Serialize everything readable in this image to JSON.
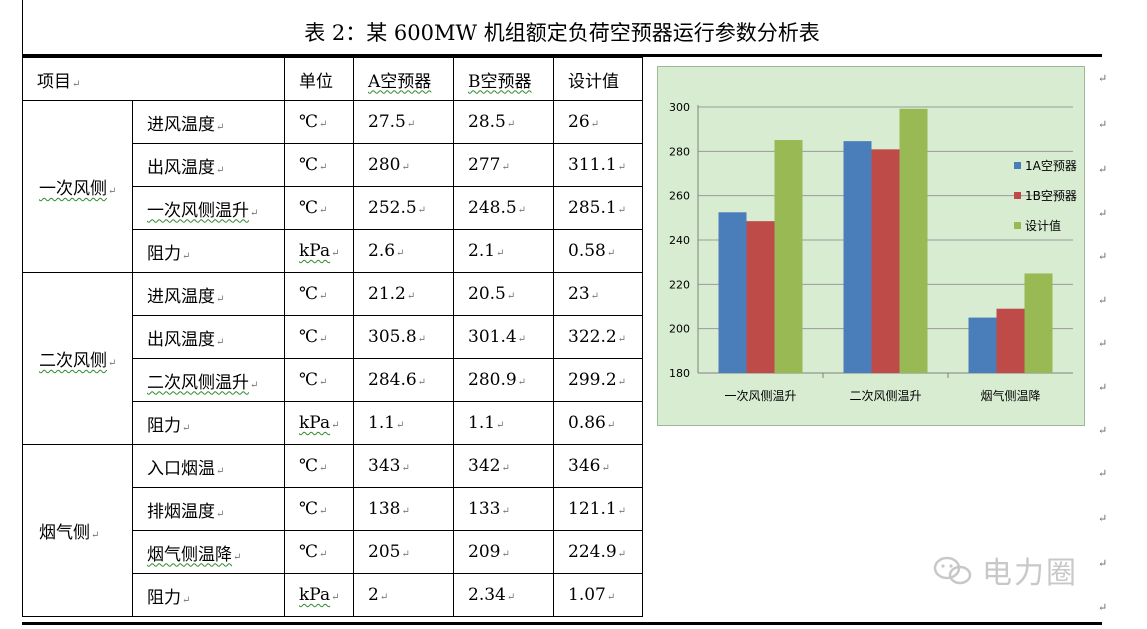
{
  "title": "表 2：某 600MW 机组额定负荷空预器运行参数分析表",
  "table": {
    "headers": [
      "项目",
      "单位",
      "A空预器",
      "B空预器",
      "设计值"
    ],
    "groups": [
      {
        "name": "一次风侧",
        "rows": [
          {
            "item": "进风温度",
            "unit": "℃",
            "a": "27.5",
            "b": "28.5",
            "design": "26"
          },
          {
            "item": "出风温度",
            "unit": "℃",
            "a": "280",
            "b": "277",
            "design": "311.1"
          },
          {
            "item": "一次风侧温升",
            "unit": "℃",
            "a": "252.5",
            "b": "248.5",
            "design": "285.1"
          },
          {
            "item": "阻力",
            "unit": "kPa",
            "a": "2.6",
            "b": "2.1",
            "design": "0.58"
          }
        ]
      },
      {
        "name": "二次风侧",
        "rows": [
          {
            "item": "进风温度",
            "unit": "℃",
            "a": "21.2",
            "b": "20.5",
            "design": "23"
          },
          {
            "item": "出风温度",
            "unit": "℃",
            "a": "305.8",
            "b": "301.4",
            "design": "322.2"
          },
          {
            "item": "二次风侧温升",
            "unit": "℃",
            "a": "284.6",
            "b": "280.9",
            "design": "299.2"
          },
          {
            "item": "阻力",
            "unit": "kPa",
            "a": "1.1",
            "b": "1.1",
            "design": "0.86"
          }
        ]
      },
      {
        "name": "烟气侧",
        "rows": [
          {
            "item": "入口烟温",
            "unit": "℃",
            "a": "343",
            "b": "342",
            "design": "346"
          },
          {
            "item": "排烟温度",
            "unit": "℃",
            "a": "138",
            "b": "133",
            "design": "121.1"
          },
          {
            "item": "烟气侧温降",
            "unit": "℃",
            "a": "205",
            "b": "209",
            "design": "224.9"
          },
          {
            "item": "阻力",
            "unit": "kPa",
            "a": "2",
            "b": "2.34",
            "design": "1.07"
          }
        ]
      }
    ]
  },
  "chart_data": {
    "type": "bar",
    "categories": [
      "一次风侧温升",
      "二次风侧温升",
      "烟气侧温降"
    ],
    "series": [
      {
        "name": "1A空预器",
        "values": [
          252.5,
          284.6,
          205
        ],
        "color": "#4a7ebb"
      },
      {
        "name": "1B空预器",
        "values": [
          248.5,
          280.9,
          209
        ],
        "color": "#be4b48"
      },
      {
        "name": "设计值",
        "values": [
          285.1,
          299.2,
          224.9
        ],
        "color": "#98b954"
      }
    ],
    "yticks": [
      180,
      200,
      220,
      240,
      260,
      280,
      300
    ],
    "ylim": [
      180,
      300
    ],
    "grid": true,
    "legend": "right"
  },
  "watermark": "电力圈",
  "paragraph_mark": "↵"
}
